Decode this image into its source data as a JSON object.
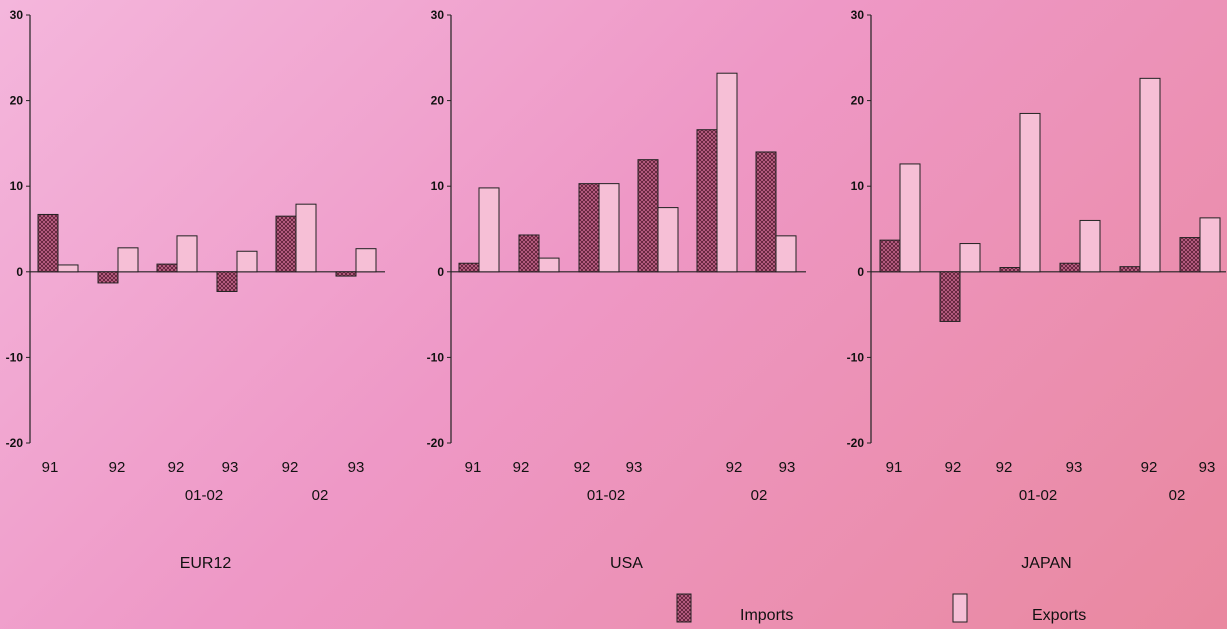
{
  "chart_data": [
    {
      "type": "bar",
      "title": "EUR12",
      "ylim": [
        -20,
        30
      ],
      "yticks": [
        "30",
        "20",
        "10",
        "0",
        "-10",
        "-20"
      ],
      "categories": [
        "91",
        "92",
        "92",
        "93",
        "92",
        "93"
      ],
      "period_labels": [
        "01-02",
        "02"
      ],
      "series": [
        {
          "name": "Imports",
          "values": [
            6.7,
            -1.3,
            0.9,
            -2.3,
            6.5,
            -0.5
          ]
        },
        {
          "name": "Exports",
          "values": [
            0.8,
            2.8,
            4.2,
            2.4,
            7.9,
            2.7
          ]
        }
      ]
    },
    {
      "type": "bar",
      "title": "USA",
      "ylim": [
        -20,
        30
      ],
      "yticks": [
        "30",
        "20",
        "10",
        "0",
        "-10",
        "-20"
      ],
      "categories": [
        "91",
        "92",
        "92",
        "93",
        "92",
        "93"
      ],
      "period_labels": [
        "01-02",
        "02"
      ],
      "series": [
        {
          "name": "Imports",
          "values": [
            1.0,
            4.3,
            10.3,
            13.1,
            16.6,
            14.0
          ]
        },
        {
          "name": "Exports",
          "values": [
            9.8,
            1.6,
            10.3,
            7.5,
            23.2,
            4.2
          ]
        }
      ]
    },
    {
      "type": "bar",
      "title": "JAPAN",
      "ylim": [
        -20,
        30
      ],
      "yticks": [
        "30",
        "20",
        "10",
        "0",
        "-10",
        "-20"
      ],
      "categories": [
        "91",
        "92",
        "92",
        "93",
        "92",
        "93"
      ],
      "period_labels": [
        "01-02",
        "02"
      ],
      "series": [
        {
          "name": "Imports",
          "values": [
            3.7,
            -5.8,
            0.5,
            1.0,
            0.6,
            4.0
          ]
        },
        {
          "name": "Exports",
          "values": [
            12.6,
            3.3,
            18.5,
            6.0,
            22.6,
            6.3
          ]
        }
      ]
    }
  ],
  "legend": {
    "imports": "Imports",
    "exports": "Exports"
  },
  "colors": {
    "axis": "#222222",
    "imports_fill": "#8a3a55",
    "exports_fill": "#f6bfd6"
  }
}
